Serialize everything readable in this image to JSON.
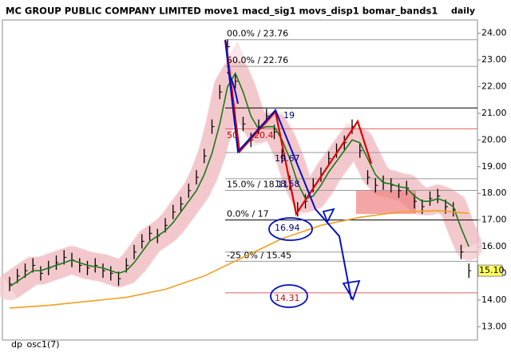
{
  "chart_data": {
    "type": "price",
    "title": "MC GROUP PUBLIC COMPANY LIMITED move1 macd_sig1 movs_disp1 bomar_bands1",
    "period": "daily",
    "footer": "dp_osc1(7)",
    "ylim": [
      12.5,
      24.5
    ],
    "yticks": [
      {
        "value": 13,
        "label": "13.00"
      },
      {
        "value": 14,
        "label": "14.00"
      },
      {
        "value": 15,
        "label": "15.00"
      },
      {
        "value": 16,
        "label": "16.00"
      },
      {
        "value": 17,
        "label": "17.00"
      },
      {
        "value": 18,
        "label": "18.00"
      },
      {
        "value": 19,
        "label": "19.00"
      },
      {
        "value": 20,
        "label": "20.00"
      },
      {
        "value": 21,
        "label": "21.00"
      },
      {
        "value": 22,
        "label": "22.00"
      },
      {
        "value": 23,
        "label": "23.00"
      },
      {
        "value": 24,
        "label": "24.00"
      }
    ],
    "last_price": {
      "value": 15.1,
      "label": "15.10"
    },
    "series": [
      {
        "color": "#000000",
        "values": [
          14.6,
          14.9,
          15.1,
          15.3,
          15.0,
          15.2,
          15.4,
          15.6,
          15.5,
          15.3,
          15.2,
          15.3,
          15.1,
          15.0,
          14.8,
          15.3,
          15.8,
          16.2,
          16.5,
          16.4,
          16.8,
          17.3,
          17.6,
          18.1,
          18.6,
          19.4,
          20.5,
          21.8,
          23.5,
          22.2,
          20.6,
          20.0,
          20.5,
          20.9,
          20.3,
          19.4,
          18.4,
          17.4,
          17.7,
          18.3,
          18.7,
          19.3,
          19.6,
          19.9,
          20.5,
          19.6,
          18.6,
          18.3,
          18.4,
          18.3,
          18.1,
          18.2,
          17.7,
          17.5,
          17.8,
          17.9,
          17.5,
          17.4,
          15.8,
          15.1
        ]
      },
      {
        "color": "#1a7a1a",
        "values": [
          14.5,
          14.7,
          14.9,
          15.1,
          15.1,
          15.2,
          15.3,
          15.4,
          15.5,
          15.4,
          15.3,
          15.25,
          15.2,
          15.1,
          15.0,
          15.1,
          15.4,
          15.8,
          16.2,
          16.4,
          16.6,
          16.9,
          17.3,
          17.7,
          18.1,
          18.7,
          19.5,
          20.6,
          22.0,
          22.5,
          21.8,
          20.9,
          20.4,
          20.5,
          20.5,
          20.0,
          19.3,
          18.4,
          17.8,
          17.9,
          18.3,
          18.8,
          19.2,
          19.6,
          20.0,
          19.9,
          19.3,
          18.7,
          18.4,
          18.35,
          18.25,
          18.2,
          17.9,
          17.7,
          17.7,
          17.8,
          17.7,
          17.5,
          16.7,
          16.0
        ]
      },
      {
        "color": "#f0a020",
        "x": [
          0,
          5,
          10,
          15,
          20,
          25,
          30,
          35,
          40,
          45,
          50,
          55,
          59
        ],
        "values": [
          13.7,
          13.8,
          13.95,
          14.1,
          14.4,
          14.9,
          15.6,
          16.3,
          16.8,
          17.1,
          17.3,
          17.35,
          17.25
        ]
      }
    ],
    "levels": [
      {
        "value": 23.76,
        "label": "00.0% / 23.76",
        "color": "#999999"
      },
      {
        "value": 22.76,
        "label": "50.0% / 22.76",
        "color": "#999999"
      },
      {
        "value": 21.2,
        "color": "#000000"
      },
      {
        "value": 20.42,
        "color": "#e06060"
      },
      {
        "value": 19.53,
        "color": "#999999"
      },
      {
        "value": 18.55,
        "color": "#999999"
      },
      {
        "value": 18.11,
        "label": "15.0% / 18.11",
        "color": "#999999"
      },
      {
        "value": 17,
        "label": "0.0% / 17",
        "color": "#000000"
      },
      {
        "value": 15.8,
        "color": "#999999"
      },
      {
        "value": 15.45,
        "label": "-25.0% / 15.45",
        "color": "#999999"
      },
      {
        "value": 14.27,
        "color": "#e06060"
      }
    ],
    "annotations": [
      {
        "text": "16.94",
        "color": "#000080"
      },
      {
        "text": "14.31",
        "color": "#cc0000"
      },
      {
        "text": "19.67",
        "color": "#000080"
      },
      {
        "text": "18.58",
        "color": "#000080"
      },
      {
        "text": "19",
        "color": "#000080"
      },
      {
        "text": "50",
        "color": "#cc0000"
      },
      {
        "text": "20.4",
        "color": "#cc0000"
      }
    ]
  }
}
